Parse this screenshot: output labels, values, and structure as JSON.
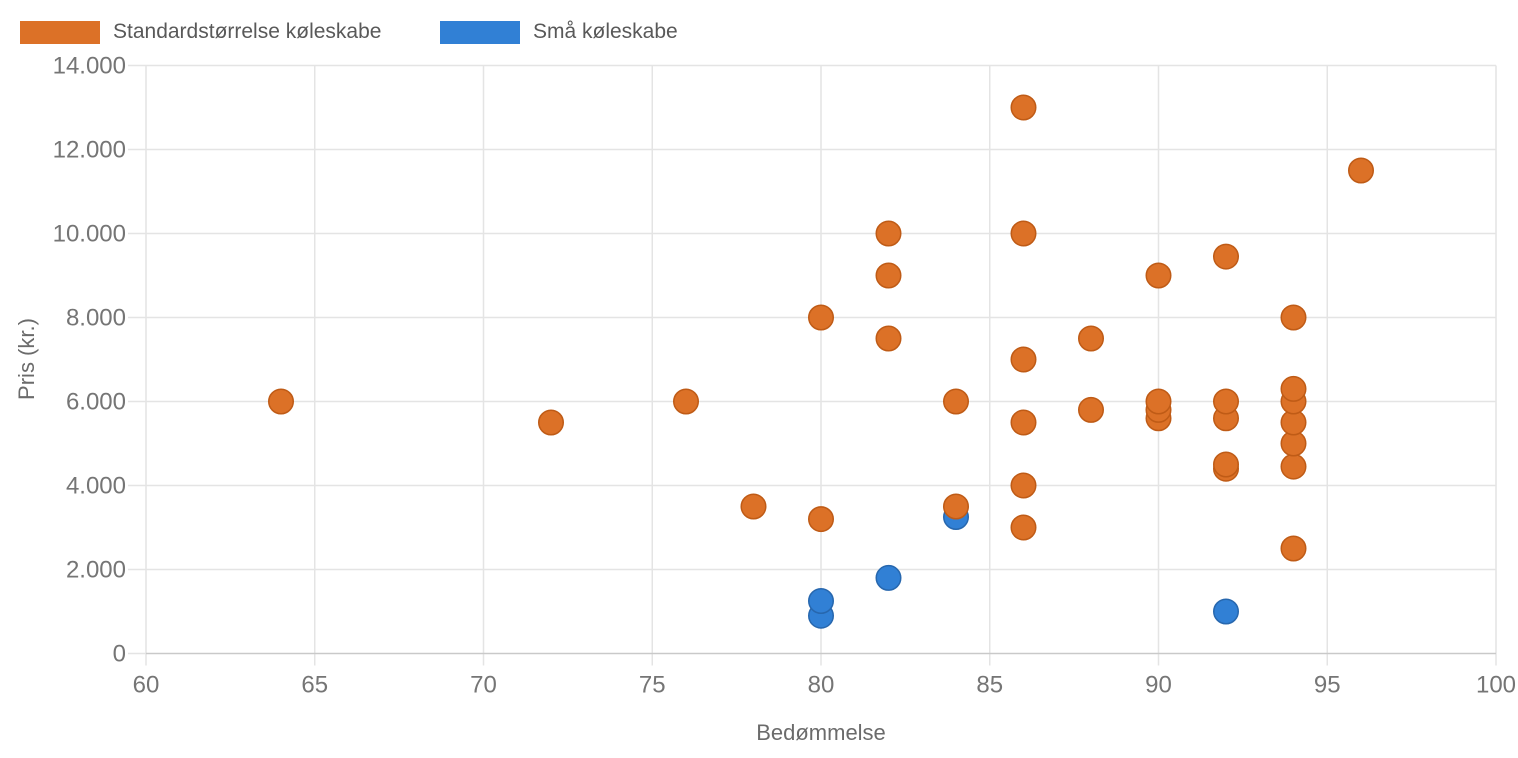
{
  "legend": {
    "items": [
      {
        "label": "Standardstørrelse køleskabe"
      },
      {
        "label": "Små køleskabe"
      }
    ]
  },
  "chart_data": {
    "type": "scatter",
    "title": "",
    "xlabel": "Bedømmelse",
    "ylabel": "Pris (kr.)",
    "xlim": [
      60,
      100
    ],
    "ylim": [
      0,
      14000
    ],
    "grid": true,
    "legend_position": "top-left",
    "x_ticks": [
      {
        "v": 60,
        "label": "60"
      },
      {
        "v": 65,
        "label": "65"
      },
      {
        "v": 70,
        "label": "70"
      },
      {
        "v": 75,
        "label": "75"
      },
      {
        "v": 80,
        "label": "80"
      },
      {
        "v": 85,
        "label": "85"
      },
      {
        "v": 90,
        "label": "90"
      },
      {
        "v": 95,
        "label": "95"
      },
      {
        "v": 100,
        "label": "100"
      }
    ],
    "y_ticks": [
      {
        "v": 0,
        "label": "0"
      },
      {
        "v": 2000,
        "label": "2.000"
      },
      {
        "v": 4000,
        "label": "4.000"
      },
      {
        "v": 6000,
        "label": "6.000"
      },
      {
        "v": 8000,
        "label": "8.000"
      },
      {
        "v": 10000,
        "label": "10.000"
      },
      {
        "v": 12000,
        "label": "12.000"
      },
      {
        "v": 14000,
        "label": "14.000"
      }
    ],
    "series": [
      {
        "name": "Standardstørrelse køleskabe",
        "color": "#DC7127",
        "stroke": "#BF5B16",
        "points": [
          [
            64,
            6000
          ],
          [
            72,
            5500
          ],
          [
            76,
            6000
          ],
          [
            78,
            3500
          ],
          [
            80,
            8000
          ],
          [
            80,
            3200
          ],
          [
            82,
            10000
          ],
          [
            82,
            9000
          ],
          [
            82,
            7500
          ],
          [
            84,
            6000
          ],
          [
            84,
            3500
          ],
          [
            86,
            13000
          ],
          [
            86,
            10000
          ],
          [
            86,
            7000
          ],
          [
            86,
            5500
          ],
          [
            86,
            4000
          ],
          [
            86,
            3000
          ],
          [
            88,
            7500
          ],
          [
            88,
            5800
          ],
          [
            90,
            9000
          ],
          [
            90,
            6000
          ],
          [
            90,
            5800
          ],
          [
            90,
            5600
          ],
          [
            92,
            9450
          ],
          [
            92,
            6000
          ],
          [
            92,
            5600
          ],
          [
            92,
            4500
          ],
          [
            92,
            4400
          ],
          [
            94,
            8000
          ],
          [
            94,
            6300
          ],
          [
            94,
            6000
          ],
          [
            94,
            5500
          ],
          [
            94,
            5000
          ],
          [
            94,
            4450
          ],
          [
            94,
            2500
          ],
          [
            96,
            11500
          ]
        ]
      },
      {
        "name": "Små køleskabe",
        "color": "#3180D5",
        "stroke": "#2767AE",
        "points": [
          [
            80,
            1250
          ],
          [
            80,
            900
          ],
          [
            82,
            1800
          ],
          [
            84,
            3250
          ],
          [
            92,
            1000
          ]
        ]
      }
    ],
    "grid_color": "#e4e4e4",
    "axis_line_color": "#c9c9c9",
    "tick_label_color": "#757575"
  }
}
